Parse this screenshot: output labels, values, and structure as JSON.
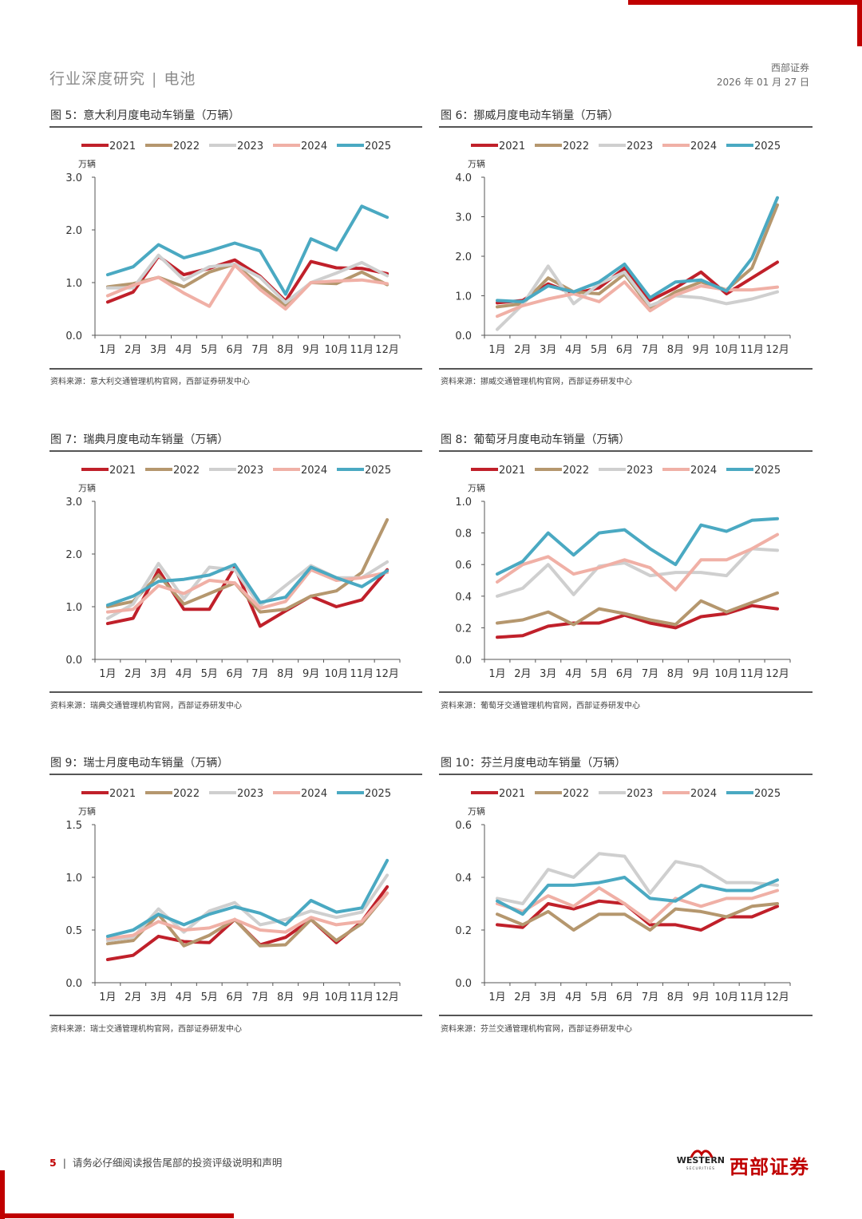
{
  "header": {
    "left_section": "行业深度研究",
    "left_topic": "电池",
    "right_company": "西部证券",
    "right_date": "2026 年 01 月 27 日"
  },
  "footer": {
    "page_number": "5",
    "notice": "请务必仔细阅读报告尾部的投资评级说明和声明",
    "logo_en": "WESTERN",
    "logo_en_sub": "SECURITIES",
    "logo_cn": "西部证券"
  },
  "colors": {
    "accent": "#c00000",
    "2021": "#c0202a",
    "2022": "#b5976e",
    "2023": "#cfcfcf",
    "2024": "#f0b0a6",
    "2025": "#4aa9c2"
  },
  "months": [
    "1月",
    "2月",
    "3月",
    "4月",
    "5月",
    "6月",
    "7月",
    "8月",
    "9月",
    "10月",
    "11月",
    "12月"
  ],
  "chart_data": [
    {
      "type": "line",
      "title": "图 5：意大利月度电动车销量（万辆）",
      "unit": "万辆",
      "ylim": [
        0,
        3
      ],
      "yticks": [
        "0.0",
        "1.0",
        "2.0",
        "3.0"
      ],
      "source": "资料来源：意大利交通管理机构官网，西部证券研发中心",
      "series": [
        {
          "name": "2021",
          "values": [
            0.63,
            0.82,
            1.5,
            1.15,
            1.27,
            1.43,
            1.12,
            0.65,
            1.4,
            1.28,
            1.27,
            1.17
          ]
        },
        {
          "name": "2022",
          "values": [
            0.92,
            0.98,
            1.1,
            0.92,
            1.2,
            1.35,
            0.94,
            0.56,
            1.0,
            0.98,
            1.2,
            0.96
          ]
        },
        {
          "name": "2023",
          "values": [
            0.9,
            0.9,
            1.52,
            1.05,
            1.3,
            1.35,
            1.1,
            0.62,
            1.0,
            1.18,
            1.38,
            1.13
          ]
        },
        {
          "name": "2024",
          "values": [
            0.75,
            0.95,
            1.1,
            0.8,
            0.55,
            1.33,
            0.87,
            0.5,
            1.0,
            1.03,
            1.05,
            0.98
          ]
        },
        {
          "name": "2025",
          "values": [
            1.15,
            1.3,
            1.72,
            1.47,
            1.6,
            1.75,
            1.6,
            0.78,
            1.83,
            1.62,
            2.45,
            2.24
          ]
        }
      ]
    },
    {
      "type": "line",
      "title": "图 6：挪威月度电动车销量（万辆）",
      "unit": "万辆",
      "ylim": [
        0,
        4
      ],
      "yticks": [
        "0.0",
        "1.0",
        "2.0",
        "3.0",
        "4.0"
      ],
      "source": "资料来源：挪威交通管理机构官网，西部证券研发中心",
      "series": [
        {
          "name": "2021",
          "values": [
            0.82,
            0.88,
            1.3,
            1.05,
            1.2,
            1.7,
            0.88,
            1.2,
            1.6,
            1.05,
            1.45,
            1.85
          ]
        },
        {
          "name": "2022",
          "values": [
            0.72,
            0.8,
            1.45,
            1.1,
            1.05,
            1.55,
            0.7,
            1.1,
            1.35,
            1.15,
            1.7,
            3.3
          ]
        },
        {
          "name": "2023",
          "values": [
            0.15,
            0.78,
            1.75,
            0.8,
            1.3,
            1.6,
            0.75,
            1.0,
            0.95,
            0.8,
            0.92,
            1.1
          ]
        },
        {
          "name": "2024",
          "values": [
            0.48,
            0.75,
            0.92,
            1.05,
            0.85,
            1.35,
            0.62,
            1.02,
            1.25,
            1.15,
            1.15,
            1.22
          ]
        },
        {
          "name": "2025",
          "values": [
            0.88,
            0.85,
            1.25,
            1.1,
            1.35,
            1.8,
            0.95,
            1.35,
            1.4,
            1.12,
            1.95,
            3.48
          ]
        }
      ]
    },
    {
      "type": "line",
      "title": "图 7：瑞典月度电动车销量（万辆）",
      "unit": "万辆",
      "ylim": [
        0,
        3
      ],
      "yticks": [
        "0.0",
        "1.0",
        "2.0",
        "3.0"
      ],
      "source": "资料来源：瑞典交通管理机构官网，西部证券研发中心",
      "series": [
        {
          "name": "2021",
          "values": [
            0.68,
            0.78,
            1.7,
            0.95,
            0.95,
            1.75,
            0.63,
            0.92,
            1.2,
            1.0,
            1.13,
            1.7
          ]
        },
        {
          "name": "2022",
          "values": [
            1.0,
            1.1,
            1.6,
            1.05,
            1.25,
            1.45,
            0.9,
            0.95,
            1.2,
            1.3,
            1.65,
            2.65
          ]
        },
        {
          "name": "2023",
          "values": [
            0.78,
            1.05,
            1.82,
            1.15,
            1.75,
            1.7,
            1.02,
            1.4,
            1.78,
            1.55,
            1.55,
            1.85
          ]
        },
        {
          "name": "2024",
          "values": [
            0.9,
            0.95,
            1.4,
            1.25,
            1.5,
            1.45,
            0.97,
            1.1,
            1.7,
            1.5,
            1.55,
            1.65
          ]
        },
        {
          "name": "2025",
          "values": [
            1.03,
            1.2,
            1.48,
            1.52,
            1.6,
            1.8,
            1.08,
            1.18,
            1.75,
            1.55,
            1.38,
            1.68
          ]
        }
      ]
    },
    {
      "type": "line",
      "title": "图 8：葡萄牙月度电动车销量（万辆）",
      "unit": "万辆",
      "ylim": [
        0,
        1
      ],
      "yticks": [
        "0.0",
        "0.2",
        "0.4",
        "0.6",
        "0.8",
        "1.0"
      ],
      "source": "资料来源：葡萄牙交通管理机构官网，西部证券研发中心",
      "series": [
        {
          "name": "2021",
          "values": [
            0.14,
            0.15,
            0.21,
            0.23,
            0.23,
            0.28,
            0.23,
            0.2,
            0.27,
            0.29,
            0.34,
            0.32
          ]
        },
        {
          "name": "2022",
          "values": [
            0.23,
            0.25,
            0.3,
            0.22,
            0.32,
            0.29,
            0.25,
            0.22,
            0.37,
            0.3,
            0.36,
            0.42
          ]
        },
        {
          "name": "2023",
          "values": [
            0.4,
            0.45,
            0.6,
            0.41,
            0.59,
            0.61,
            0.53,
            0.55,
            0.55,
            0.53,
            0.7,
            0.69
          ]
        },
        {
          "name": "2024",
          "values": [
            0.49,
            0.6,
            0.65,
            0.54,
            0.58,
            0.63,
            0.58,
            0.44,
            0.63,
            0.63,
            0.7,
            0.79
          ]
        },
        {
          "name": "2025",
          "values": [
            0.54,
            0.62,
            0.8,
            0.66,
            0.8,
            0.82,
            0.7,
            0.6,
            0.85,
            0.81,
            0.88,
            0.89
          ]
        }
      ]
    },
    {
      "type": "line",
      "title": "图 9：瑞士月度电动车销量（万辆）",
      "unit": "万辆",
      "ylim": [
        0,
        1.5
      ],
      "yticks": [
        "0.0",
        "0.5",
        "1.0",
        "1.5"
      ],
      "source": "资料来源：瑞士交通管理机构官网，西部证券研发中心",
      "series": [
        {
          "name": "2021",
          "values": [
            0.22,
            0.26,
            0.44,
            0.39,
            0.38,
            0.6,
            0.36,
            0.43,
            0.6,
            0.38,
            0.58,
            0.91
          ]
        },
        {
          "name": "2022",
          "values": [
            0.37,
            0.4,
            0.65,
            0.35,
            0.45,
            0.6,
            0.35,
            0.36,
            0.6,
            0.4,
            0.56,
            0.85
          ]
        },
        {
          "name": "2023",
          "values": [
            0.4,
            0.43,
            0.7,
            0.48,
            0.68,
            0.76,
            0.55,
            0.6,
            0.68,
            0.62,
            0.67,
            1.02
          ]
        },
        {
          "name": "2024",
          "values": [
            0.42,
            0.45,
            0.58,
            0.5,
            0.52,
            0.6,
            0.5,
            0.48,
            0.62,
            0.55,
            0.58,
            0.85
          ]
        },
        {
          "name": "2025",
          "values": [
            0.44,
            0.5,
            0.65,
            0.55,
            0.65,
            0.72,
            0.66,
            0.55,
            0.78,
            0.67,
            0.71,
            1.16
          ]
        }
      ]
    },
    {
      "type": "line",
      "title": "图 10：芬兰月度电动车销量（万辆）",
      "unit": "万辆",
      "ylim": [
        0,
        0.6
      ],
      "yticks": [
        "0.0",
        "0.2",
        "0.4",
        "0.6"
      ],
      "source": "资料来源：芬兰交通管理机构官网，西部证券研发中心",
      "series": [
        {
          "name": "2021",
          "values": [
            0.22,
            0.21,
            0.3,
            0.28,
            0.31,
            0.3,
            0.22,
            0.22,
            0.2,
            0.25,
            0.25,
            0.29
          ]
        },
        {
          "name": "2022",
          "values": [
            0.26,
            0.22,
            0.27,
            0.2,
            0.26,
            0.26,
            0.2,
            0.28,
            0.27,
            0.25,
            0.29,
            0.3
          ]
        },
        {
          "name": "2023",
          "values": [
            0.32,
            0.3,
            0.43,
            0.4,
            0.49,
            0.48,
            0.34,
            0.46,
            0.44,
            0.38,
            0.38,
            0.37
          ]
        },
        {
          "name": "2024",
          "values": [
            0.3,
            0.27,
            0.33,
            0.29,
            0.36,
            0.3,
            0.23,
            0.32,
            0.29,
            0.32,
            0.32,
            0.35
          ]
        },
        {
          "name": "2025",
          "values": [
            0.31,
            0.26,
            0.37,
            0.37,
            0.38,
            0.4,
            0.32,
            0.31,
            0.37,
            0.35,
            0.35,
            0.39
          ]
        }
      ]
    }
  ]
}
